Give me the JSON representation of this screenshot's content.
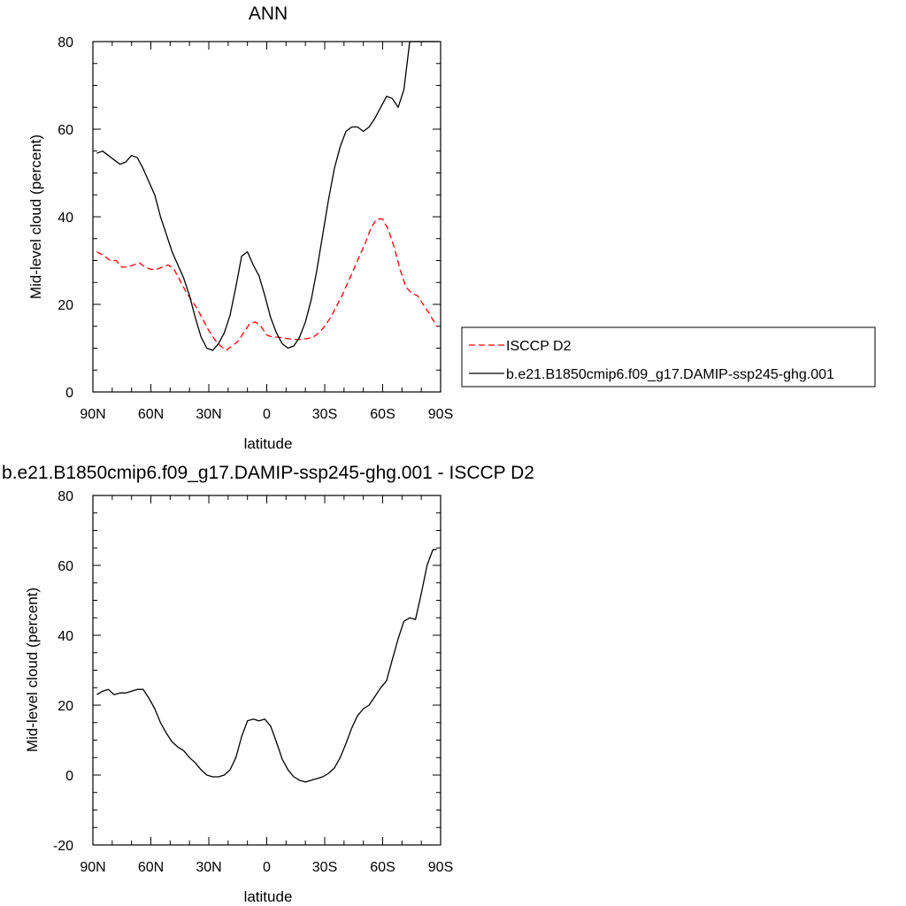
{
  "chart_data": [
    {
      "type": "line",
      "title": "ANN",
      "xlabel": "latitude",
      "ylabel": "Mid-level cloud (percent)",
      "xlim": [
        -90,
        90
      ],
      "ylim": [
        0,
        80
      ],
      "x_ticks": [
        -90,
        -60,
        -30,
        0,
        30,
        60,
        90
      ],
      "x_tick_labels": [
        "90N",
        "60N",
        "30N",
        "0",
        "30S",
        "60S",
        "90S"
      ],
      "y_ticks": [
        0,
        20,
        40,
        60,
        80
      ],
      "y_tick_labels": [
        "0",
        "20",
        "40",
        "60",
        "80"
      ],
      "grid": false,
      "legend": "right",
      "series": [
        {
          "name": "ISCCP D2",
          "color": "#ff0000",
          "dash": "dashed",
          "x": [
            -88,
            -84,
            -81,
            -78,
            -75,
            -72,
            -69,
            -66,
            -63,
            -60,
            -57,
            -54,
            -51,
            -48,
            -45,
            -42,
            -39,
            -36,
            -33,
            -30,
            -27,
            -24,
            -21,
            -18,
            -15,
            -12,
            -9,
            -6,
            -3,
            0,
            3,
            6,
            9,
            12,
            15,
            18,
            21,
            24,
            27,
            30,
            33,
            36,
            39,
            42,
            45,
            48,
            51,
            54,
            57,
            60,
            63,
            66,
            69,
            72,
            75,
            78,
            81,
            84,
            88
          ],
          "y": [
            32,
            31,
            30,
            30,
            28.5,
            28.5,
            29,
            29.5,
            28.5,
            28,
            28,
            28.5,
            29,
            28,
            25.5,
            23,
            21,
            19,
            16.5,
            14,
            12,
            10.5,
            9.5,
            10.5,
            11.5,
            13.5,
            15.5,
            16,
            15,
            13,
            12.5,
            12.5,
            12.3,
            12.1,
            12,
            12,
            12.2,
            12.5,
            13.5,
            15,
            17,
            19.5,
            22,
            25,
            28,
            31,
            34,
            37.5,
            39.5,
            39.5,
            37,
            33,
            28,
            24,
            22.5,
            22,
            20,
            18,
            15
          ]
        },
        {
          "name": "b.e21.B1850cmip6.f09_g17.DAMIP-ssp245-ghg.001",
          "color": "#000000",
          "dash": "solid",
          "x": [
            -88,
            -85,
            -82,
            -79,
            -76,
            -73,
            -70,
            -67,
            -64,
            -61,
            -58,
            -55,
            -52,
            -49,
            -46,
            -43,
            -40,
            -37,
            -34,
            -31,
            -28,
            -25,
            -22,
            -19,
            -16,
            -13,
            -10,
            -7,
            -4,
            -1,
            2,
            5,
            8,
            11,
            14,
            17,
            20,
            23,
            26,
            29,
            32,
            35,
            38,
            41,
            44,
            47,
            50,
            53,
            56,
            59,
            62,
            65,
            68,
            71,
            74,
            77,
            80,
            83,
            86,
            89
          ],
          "y": [
            54.5,
            55,
            54,
            53,
            52,
            52.5,
            54,
            53.5,
            51,
            48,
            45,
            40,
            36,
            32,
            29,
            26,
            22,
            17,
            12.5,
            10,
            9.5,
            11,
            13.5,
            17.5,
            24,
            31,
            32,
            29,
            26.5,
            22,
            17,
            13.5,
            11,
            10,
            10.5,
            12.5,
            16,
            21,
            28,
            36,
            44,
            51,
            56,
            59.5,
            60.5,
            60.5,
            59.5,
            60.5,
            62.5,
            65,
            67.5,
            67,
            65,
            69,
            80,
            80,
            80,
            80,
            80,
            80
          ]
        }
      ]
    },
    {
      "type": "line",
      "title": "b.e21.B1850cmip6.f09_g17.DAMIP-ssp245-ghg.001 - ISCCP D2",
      "xlabel": "latitude",
      "ylabel": "Mid-level cloud (percent)",
      "xlim": [
        -90,
        90
      ],
      "ylim": [
        -20,
        80
      ],
      "x_ticks": [
        -90,
        -60,
        -30,
        0,
        30,
        60,
        90
      ],
      "x_tick_labels": [
        "90N",
        "60N",
        "30N",
        "0",
        "30S",
        "60S",
        "90S"
      ],
      "y_ticks": [
        -20,
        0,
        20,
        40,
        60,
        80
      ],
      "y_tick_labels": [
        "-20",
        "0",
        "20",
        "40",
        "60",
        "80"
      ],
      "grid": false,
      "series": [
        {
          "color": "#000000",
          "dash": "solid",
          "x": [
            -88,
            -85,
            -82,
            -79,
            -76,
            -73,
            -70,
            -67,
            -64,
            -61,
            -58,
            -55,
            -52,
            -49,
            -46,
            -43,
            -40,
            -37,
            -34,
            -31,
            -28,
            -25,
            -22,
            -19,
            -16,
            -13,
            -10,
            -7,
            -4,
            -1,
            2,
            5,
            8,
            11,
            14,
            17,
            20,
            23,
            26,
            29,
            32,
            35,
            38,
            41,
            44,
            47,
            50,
            53,
            56,
            59,
            62,
            65,
            68,
            71,
            74,
            77,
            80,
            83,
            86,
            88
          ],
          "y": [
            23,
            24,
            24.5,
            23,
            23.5,
            23.5,
            24,
            24.5,
            24.5,
            22,
            19,
            15,
            12,
            9.5,
            8,
            7,
            5,
            3.5,
            1.5,
            0,
            -0.5,
            -0.5,
            0,
            1.5,
            5,
            11,
            15.5,
            16,
            15.5,
            16,
            14,
            9.5,
            4.5,
            1.5,
            -0.5,
            -1.5,
            -2,
            -1.5,
            -1,
            -0.5,
            0.5,
            2,
            5,
            9,
            13.5,
            17,
            19,
            20,
            22.5,
            25,
            27,
            33,
            39,
            44,
            45,
            44.5,
            52,
            60,
            64.5,
            64.5
          ]
        }
      ]
    }
  ]
}
